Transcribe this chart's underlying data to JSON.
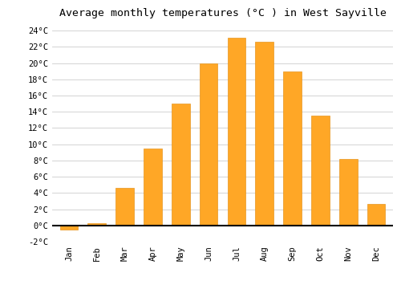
{
  "months": [
    "Jan",
    "Feb",
    "Mar",
    "Apr",
    "May",
    "Jun",
    "Jul",
    "Aug",
    "Sep",
    "Oct",
    "Nov",
    "Dec"
  ],
  "temperatures": [
    -0.5,
    0.3,
    4.6,
    9.5,
    15.0,
    20.0,
    23.1,
    22.6,
    19.0,
    13.5,
    8.2,
    2.6
  ],
  "bar_color": "#FFA726",
  "bar_edge_color": "#E69520",
  "title": "Average monthly temperatures (°C ) in West Sayville",
  "ylim": [
    -2,
    25
  ],
  "yticks": [
    -2,
    0,
    2,
    4,
    6,
    8,
    10,
    12,
    14,
    16,
    18,
    20,
    22,
    24
  ],
  "background_color": "#ffffff",
  "grid_color": "#cccccc",
  "title_fontsize": 9.5,
  "tick_fontsize": 7.5
}
